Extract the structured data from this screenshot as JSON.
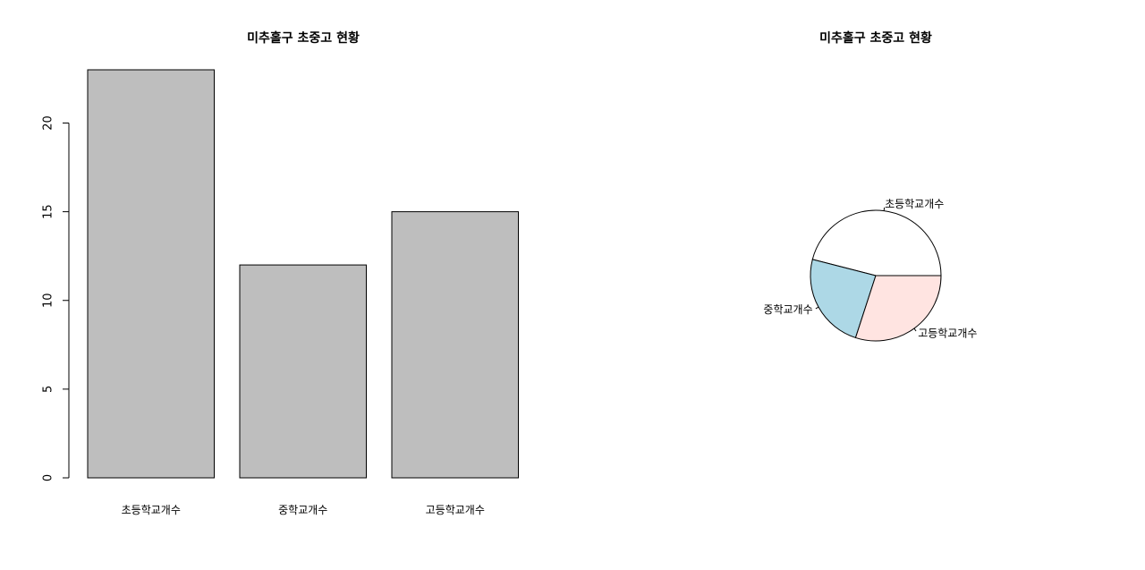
{
  "chart_data": [
    {
      "type": "bar",
      "title": "미추홀구 초중고 현황",
      "categories": [
        "초등학교개수",
        "중학교개수",
        "고등학교개수"
      ],
      "values": [
        23,
        12,
        15
      ],
      "xlabel": "",
      "ylabel": "",
      "ylim": [
        0,
        23
      ],
      "yticks": [
        0,
        5,
        10,
        15,
        20
      ],
      "bar_color": "#bebebe",
      "grid": false
    },
    {
      "type": "pie",
      "title": "미추홀구 초중고 현황",
      "labels": [
        "초등학교개수",
        "중학교개수",
        "고등학교개수"
      ],
      "values": [
        23,
        12,
        15
      ],
      "colors": [
        "#ffffff",
        "#add8e6",
        "#ffe4e1"
      ],
      "start_angle_deg": 0,
      "direction": "counterclockwise"
    }
  ]
}
